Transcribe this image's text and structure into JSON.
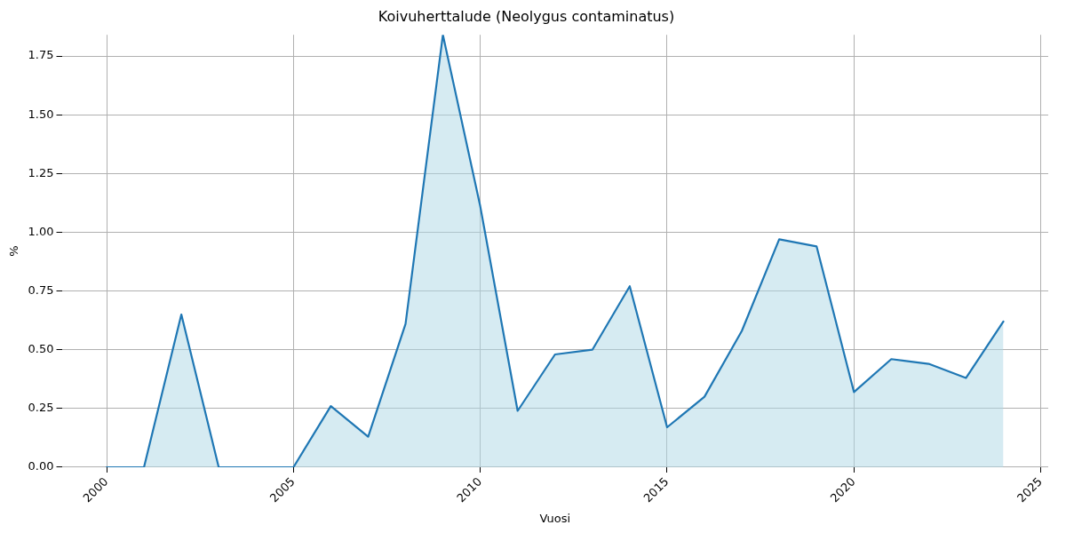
{
  "chart_data": {
    "type": "area",
    "title": "Koivuherttalude (Neolygus contaminatus)",
    "xlabel": "Vuosi",
    "ylabel": "%",
    "x": [
      2000,
      2001,
      2002,
      2003,
      2004,
      2005,
      2006,
      2007,
      2008,
      2009,
      2010,
      2011,
      2012,
      2013,
      2014,
      2015,
      2016,
      2017,
      2018,
      2019,
      2020,
      2021,
      2022,
      2023,
      2024
    ],
    "series": [
      {
        "color": "#1f77b4",
        "values": [
          0,
          0,
          0.65,
          0,
          0,
          0,
          0.26,
          0.13,
          0.61,
          1.84,
          1.11,
          0.24,
          0.48,
          0.5,
          0.77,
          0.17,
          0.3,
          0.58,
          0.97,
          0.94,
          0.32,
          0.46,
          0.44,
          0.38,
          0.62
        ]
      }
    ],
    "xlim": [
      1998.8,
      2025.2
    ],
    "xticks": [
      2000,
      2005,
      2010,
      2015,
      2020,
      2025
    ],
    "ylim": [
      0,
      1.84
    ],
    "yticks": [
      {
        "value": 0,
        "label": "0.00"
      },
      {
        "value": 0.25,
        "label": "0.25"
      },
      {
        "value": 0.5,
        "label": "0.50"
      },
      {
        "value": 0.75,
        "label": "0.75"
      },
      {
        "value": 1,
        "label": "1.00"
      },
      {
        "value": 1.25,
        "label": "1.25"
      },
      {
        "value": 1.5,
        "label": "1.50"
      },
      {
        "value": 1.75,
        "label": "1.75"
      }
    ],
    "grid": true,
    "legend": false,
    "marker": "none",
    "line_style": "solid"
  }
}
